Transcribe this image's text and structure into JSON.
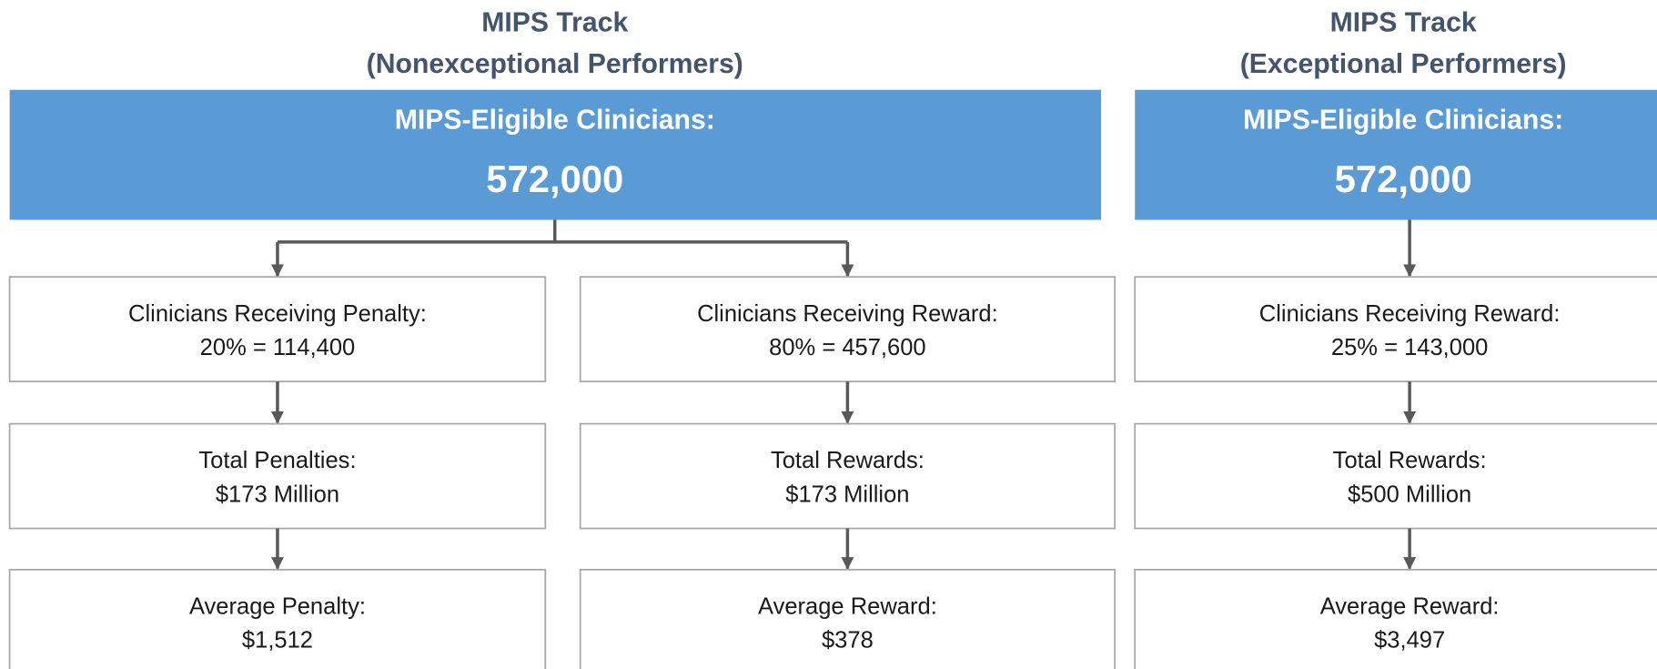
{
  "tracks": [
    {
      "title": [
        "MIPS Track",
        "(Nonexceptional Performers)"
      ],
      "header_label": "MIPS-Eligible Clinicians:",
      "header_value": "572,000",
      "branches": [
        {
          "boxes": [
            [
              "Clinicians Receiving Penalty:",
              "20% = 114,400"
            ],
            [
              "Total Penalties:",
              "$173 Million"
            ],
            [
              "Average Penalty:",
              "$1,512"
            ]
          ]
        },
        {
          "boxes": [
            [
              "Clinicians Receiving Reward:",
              "80% = 457,600"
            ],
            [
              "Total Rewards:",
              "$173 Million"
            ],
            [
              "Average Reward:",
              "$378"
            ]
          ]
        }
      ]
    },
    {
      "title": [
        "MIPS Track",
        "(Exceptional Performers)"
      ],
      "header_label": "MIPS-Eligible Clinicians:",
      "header_value": "572,000",
      "branches": [
        {
          "boxes": [
            [
              "Clinicians Receiving Reward:",
              "25% = 143,000"
            ],
            [
              "Total Rewards:",
              "$500 Million"
            ],
            [
              "Average Reward:",
              "$3,497"
            ]
          ]
        }
      ]
    }
  ]
}
